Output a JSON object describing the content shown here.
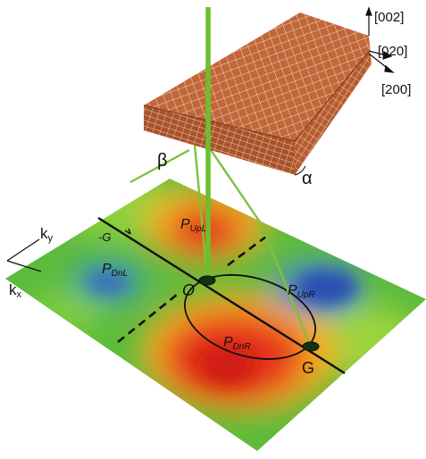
{
  "axes": {
    "miller_indices": [
      "[002]",
      "[020]",
      "[200]"
    ],
    "k_labels": {
      "ky": "k",
      "ky_sub": "y",
      "kx": "k",
      "kx_sub": "x"
    }
  },
  "angles": {
    "beta": "β",
    "alpha": "α"
  },
  "points": {
    "origin": "O",
    "g_pos": "G",
    "g_neg": "-G"
  },
  "regions": [
    {
      "id": "upL",
      "main": "P",
      "sub": "UpL"
    },
    {
      "id": "dnL",
      "main": "P",
      "sub": "DnL"
    },
    {
      "id": "upR",
      "main": "P",
      "sub": "UpR"
    },
    {
      "id": "dnR",
      "main": "P",
      "sub": "DnR"
    }
  ],
  "colors": {
    "crystal_top": "#c2673a",
    "crystal_left": "#a9522a",
    "crystal_right": "#b85d31",
    "crystal_grid": "#f4ddc8",
    "beam": "#7ec23a",
    "ground_green": "#5cbb3c",
    "hot": "#e0281c",
    "warm": "#f4a223",
    "cold": "#2a4fb0"
  }
}
